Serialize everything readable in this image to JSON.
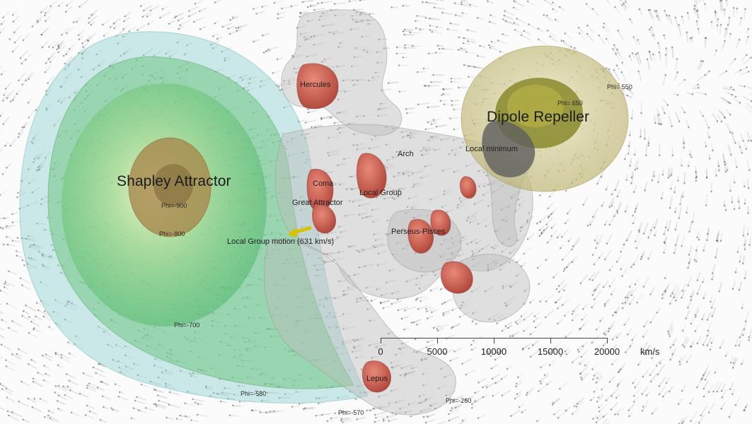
{
  "labels": {
    "shapley": "Shapley Attractor",
    "dipole": "Dipole Repeller",
    "hercules": "Hercules",
    "arch": "Arch",
    "local_minimum": "Local minimum",
    "coma": "Coma",
    "local_group": "Local Group",
    "great_attractor": "Great Attractor",
    "local_group_motion": "Local Group motion (631 km/s)",
    "perseus_pisces": "Perseus-Pisces",
    "lepus": "Lepus"
  },
  "contours": {
    "phi_shapley_core": "Phi=-900",
    "phi_shapley_inner": "Phi=-800",
    "phi_shapley_mid": "Phi=-700",
    "phi_shapley_outer": "Phi=-580",
    "phi_shapley_outermost": "Phi=-570",
    "phi_dipole_inner": "Phi= 650",
    "phi_dipole_outer": "Phi= 550",
    "phi_bottom": "Phi=-260"
  },
  "scale": {
    "ticks": [
      "0",
      "5000",
      "10000",
      "15000",
      "20000"
    ],
    "unit": "km/s"
  },
  "colors": {
    "attractor_green": "#5fc46f",
    "repeller_yellow": "#c9c27a",
    "cluster_red": "#c8564a",
    "web_gray": "#bdbdbd"
  }
}
